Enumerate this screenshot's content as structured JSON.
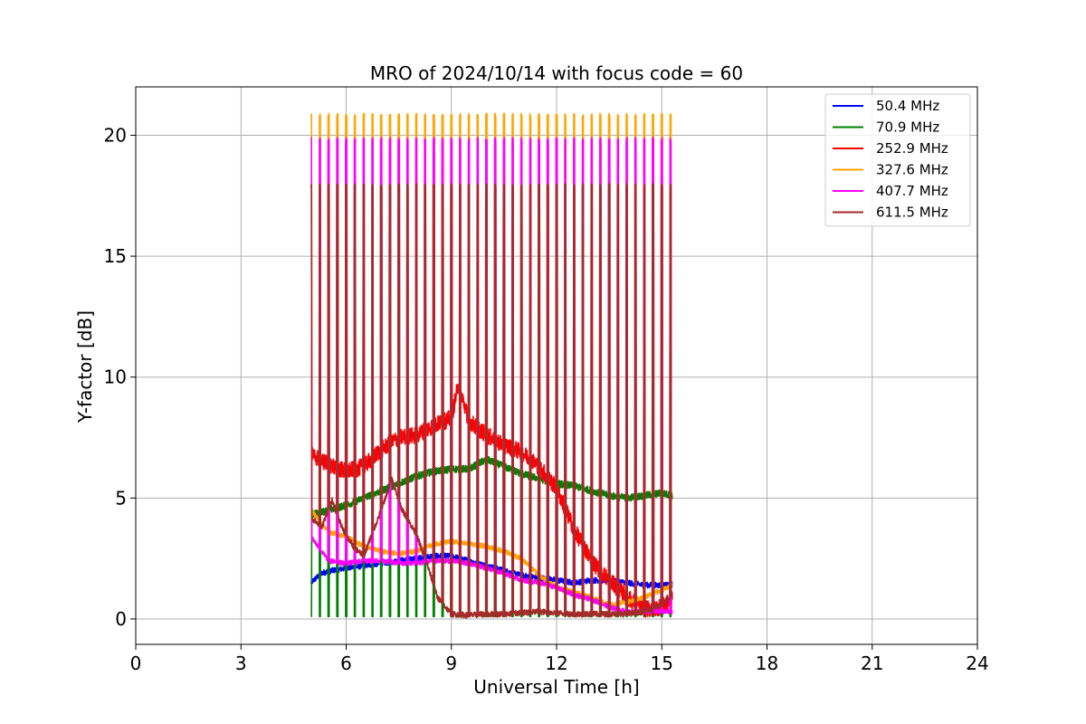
{
  "chart_data": {
    "type": "line",
    "title": "MRO of 2024/10/14 with focus code = 60",
    "xlabel": "Universal Time [h]",
    "ylabel": "Y-factor [dB]",
    "xlim": [
      0,
      24
    ],
    "ylim": [
      -1.05,
      22
    ],
    "xticks": [
      0,
      3,
      6,
      9,
      12,
      15,
      18,
      21,
      24
    ],
    "yticks": [
      0,
      5,
      10,
      15,
      20
    ],
    "grid": true,
    "legend_position": "top-right",
    "calibration_spikes": {
      "description_free": true,
      "times": [
        5.0,
        5.25,
        5.5,
        5.75,
        6.0,
        6.25,
        6.5,
        6.75,
        7.0,
        7.25,
        7.5,
        7.75,
        8.0,
        8.25,
        8.5,
        8.75,
        9.0,
        9.25,
        9.5,
        9.75,
        10.0,
        10.25,
        10.5,
        10.75,
        11.0,
        11.25,
        11.5,
        11.75,
        12.0,
        12.25,
        12.5,
        12.75,
        13.0,
        13.25,
        13.5,
        13.75,
        14.0,
        14.25,
        14.5,
        14.75,
        15.0,
        15.25
      ],
      "peak_by_series": [
        0,
        0,
        18,
        20.9,
        19.9,
        18
      ],
      "dip_by_series": [
        null,
        0.1,
        null,
        null,
        null,
        null
      ]
    },
    "series": [
      {
        "name": "50.4 MHz",
        "color": "#0000ff",
        "x": [
          5.0,
          5.3,
          5.6,
          6.0,
          6.5,
          7.0,
          7.5,
          8.0,
          8.5,
          9.0,
          9.5,
          10.0,
          10.5,
          11.0,
          11.5,
          12.0,
          12.5,
          13.0,
          13.5,
          14.0,
          14.5,
          15.0,
          15.3
        ],
        "y": [
          1.5,
          1.9,
          2.0,
          2.1,
          2.2,
          2.3,
          2.4,
          2.5,
          2.6,
          2.6,
          2.4,
          2.2,
          2.0,
          1.8,
          1.7,
          1.6,
          1.5,
          1.6,
          1.6,
          1.5,
          1.4,
          1.4,
          1.4
        ]
      },
      {
        "name": "70.9 MHz",
        "color": "#008000",
        "x": [
          5.0,
          5.5,
          6.0,
          6.5,
          7.0,
          7.5,
          8.0,
          8.5,
          9.0,
          9.5,
          10.0,
          10.5,
          11.0,
          11.5,
          12.0,
          12.5,
          13.0,
          13.5,
          14.0,
          14.5,
          15.0,
          15.3
        ],
        "y": [
          4.3,
          4.5,
          4.7,
          5.0,
          5.3,
          5.6,
          5.9,
          6.1,
          6.2,
          6.2,
          6.6,
          6.3,
          6.0,
          5.8,
          5.6,
          5.5,
          5.3,
          5.1,
          5.0,
          5.1,
          5.2,
          5.1
        ]
      },
      {
        "name": "252.9 MHz",
        "color": "#ff0000",
        "x": [
          5.0,
          5.5,
          6.0,
          6.5,
          7.0,
          7.5,
          8.0,
          8.5,
          9.0,
          9.2,
          9.5,
          10.0,
          10.5,
          11.0,
          11.5,
          12.0,
          12.5,
          13.0,
          13.5,
          14.0,
          14.5,
          15.0,
          15.3
        ],
        "y": [
          6.8,
          6.4,
          6.1,
          6.3,
          7.0,
          7.5,
          7.6,
          8.0,
          8.3,
          9.7,
          8.2,
          7.6,
          7.2,
          6.9,
          6.3,
          5.4,
          3.7,
          2.4,
          1.6,
          0.9,
          0.4,
          0.5,
          0.8
        ]
      },
      {
        "name": "327.6 MHz",
        "color": "#ffa500",
        "x": [
          5.0,
          5.5,
          6.0,
          6.5,
          7.0,
          7.5,
          8.0,
          8.5,
          9.0,
          9.5,
          10.0,
          10.5,
          11.0,
          11.5,
          12.0,
          12.5,
          13.0,
          13.5,
          14.0,
          14.5,
          15.0,
          15.3
        ],
        "y": [
          4.5,
          3.6,
          3.4,
          3.0,
          2.8,
          2.7,
          2.8,
          3.1,
          3.2,
          3.1,
          3.0,
          2.8,
          2.5,
          1.8,
          1.3,
          1.1,
          0.9,
          0.6,
          0.7,
          0.9,
          1.2,
          1.4
        ]
      },
      {
        "name": "407.7 MHz",
        "color": "#ff00ff",
        "x": [
          5.0,
          5.5,
          6.0,
          6.5,
          7.0,
          7.5,
          8.0,
          8.5,
          9.0,
          9.5,
          10.0,
          10.5,
          11.0,
          11.5,
          12.0,
          12.5,
          13.0,
          13.5,
          14.0,
          14.5,
          15.0,
          15.3
        ],
        "y": [
          3.4,
          2.4,
          2.3,
          2.4,
          2.4,
          2.3,
          2.3,
          2.4,
          2.4,
          2.3,
          2.1,
          1.9,
          1.6,
          1.5,
          1.3,
          1.0,
          0.8,
          0.5,
          0.3,
          0.3,
          0.3,
          0.3
        ]
      },
      {
        "name": "611.5 MHz",
        "color": "#a52a2a",
        "x": [
          5.0,
          5.3,
          5.6,
          5.9,
          6.2,
          6.5,
          7.0,
          7.3,
          7.6,
          8.0,
          8.3,
          8.6,
          9.0,
          9.5,
          10.0,
          10.5,
          11.0,
          11.5,
          12.0,
          12.5,
          13.0,
          13.5,
          14.0,
          14.5,
          15.0,
          15.3
        ],
        "y": [
          4.2,
          3.8,
          4.9,
          3.7,
          3.0,
          2.6,
          4.5,
          5.8,
          4.5,
          3.5,
          2.3,
          0.9,
          0.2,
          0.15,
          0.2,
          0.2,
          0.25,
          0.3,
          0.25,
          0.2,
          0.2,
          0.2,
          0.2,
          0.3,
          0.6,
          1.0
        ]
      }
    ]
  }
}
